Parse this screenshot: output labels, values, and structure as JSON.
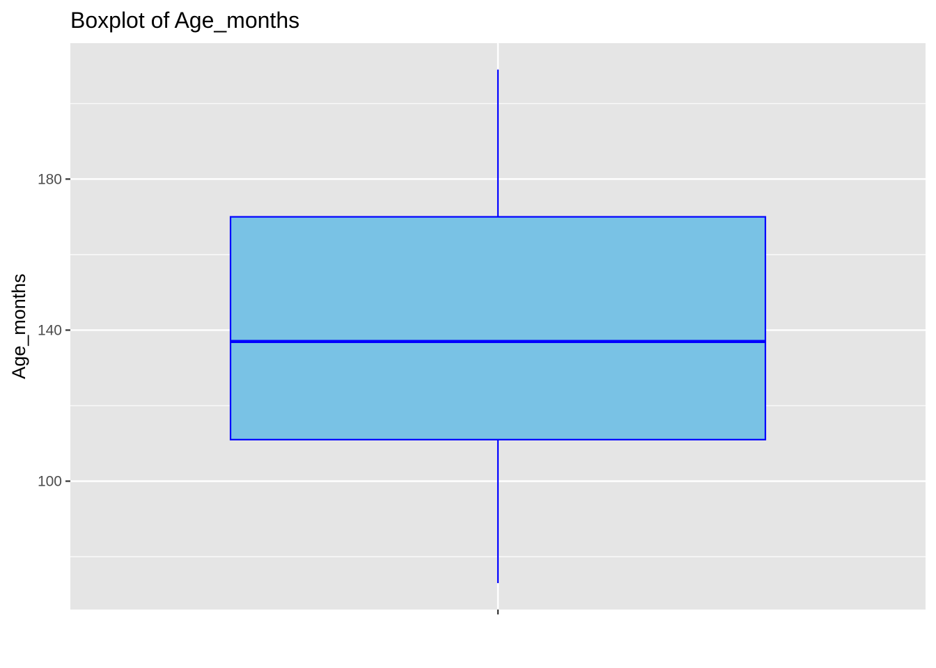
{
  "chart_data": {
    "type": "boxplot",
    "title": "Boxplot of Age_months",
    "xlabel": "",
    "ylabel": "Age_months",
    "ylim": [
      66,
      216
    ],
    "y_ticks": [
      100,
      140,
      180
    ],
    "y_tick_labels": [
      "100",
      "140",
      "180"
    ],
    "y_minor_ticks": [
      80,
      120,
      160,
      200
    ],
    "grid": true,
    "legend": "none",
    "box": {
      "whisker_low": 73,
      "q1": 111,
      "median": 137,
      "q3": 170,
      "whisker_high": 209
    },
    "colors": {
      "panel_background": "#e5e5e5",
      "grid": "#ffffff",
      "box_fill": "#79c2e5",
      "box_outline": "#0000ff",
      "tick_mark": "#333333"
    }
  }
}
